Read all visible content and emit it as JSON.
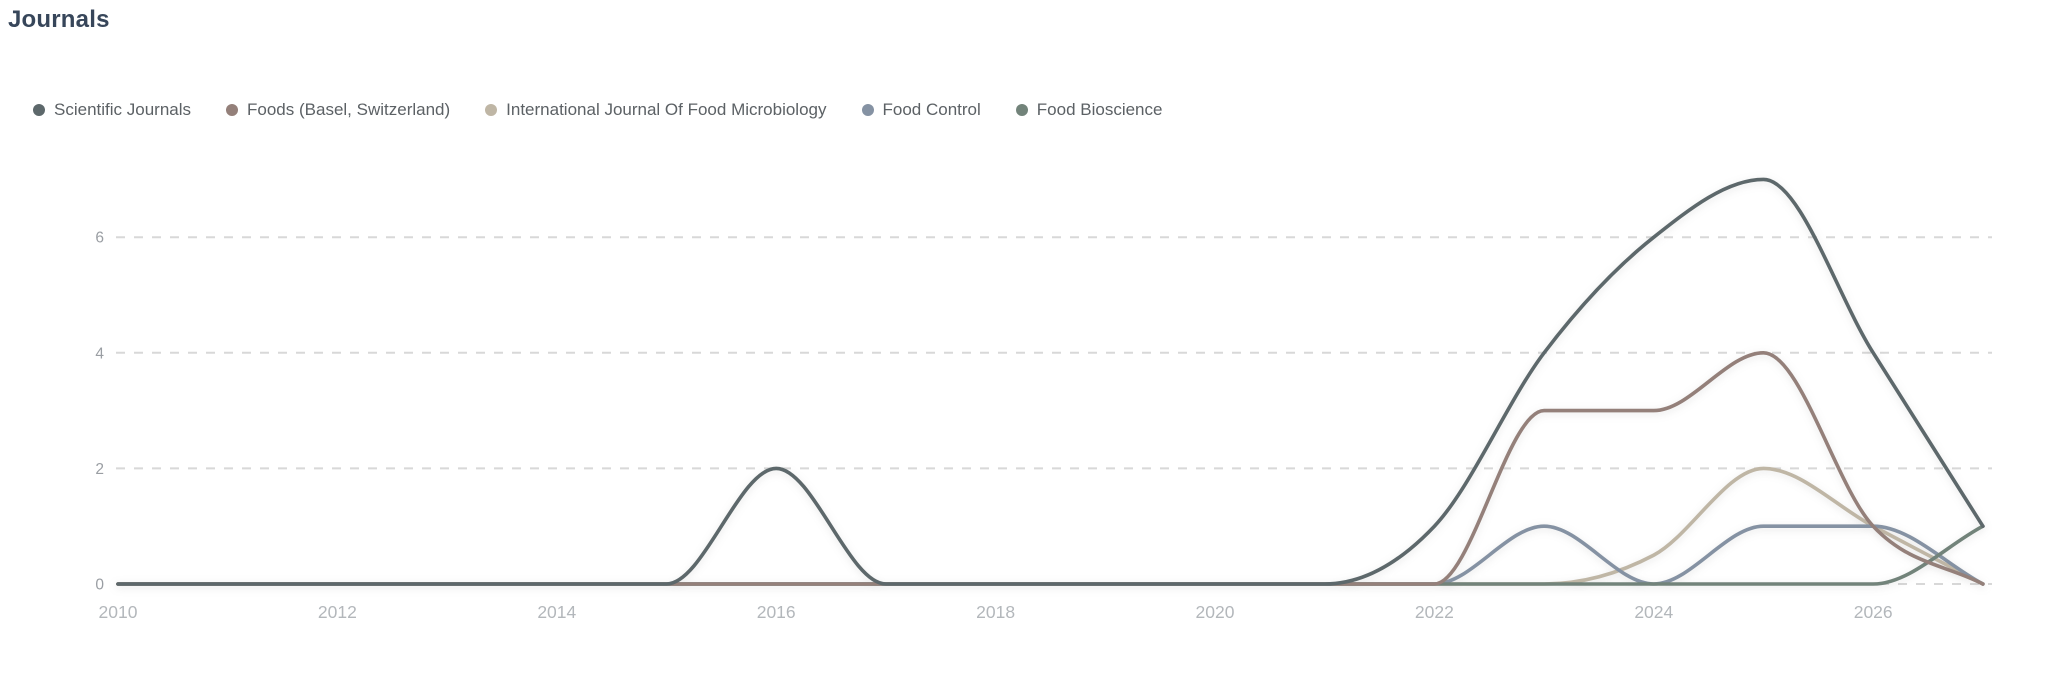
{
  "title": "Journals",
  "colors": {
    "title": "#37465a",
    "legend_text": "#5c6165",
    "y_tick_label": "#9a9ea3",
    "x_tick_label": "#b3b7bb",
    "gridline": "#d8d8d8",
    "background": "#ffffff"
  },
  "chart_data": {
    "type": "line",
    "title": "Journals",
    "xlabel": "",
    "ylabel": "",
    "x": [
      2010,
      2011,
      2012,
      2013,
      2014,
      2015,
      2016,
      2017,
      2018,
      2019,
      2020,
      2021,
      2022,
      2023,
      2024,
      2025,
      2026,
      2027
    ],
    "x_tick_labels": [
      "2010",
      "2012",
      "2014",
      "2016",
      "2018",
      "2020",
      "2022",
      "2024",
      "2026"
    ],
    "y_ticks": [
      0,
      2,
      4,
      6
    ],
    "ylim": [
      0,
      7.4
    ],
    "grid": "horizontal-dashed",
    "legend_position": "top-left",
    "line_style": "smooth-monotone",
    "series": [
      {
        "name": "Scientific Journals",
        "color": "#5d686b",
        "values": [
          0,
          0,
          0,
          0,
          0,
          0,
          2,
          0,
          0,
          0,
          0,
          0,
          1,
          4,
          6,
          7,
          4,
          1
        ]
      },
      {
        "name": "Foods (Basel, Switzerland)",
        "color": "#94807a",
        "values": [
          0,
          0,
          0,
          0,
          0,
          0,
          0,
          0,
          0,
          0,
          0,
          0,
          0,
          3,
          3,
          4,
          1,
          0
        ]
      },
      {
        "name": "International Journal Of Food Microbiology",
        "color": "#bfb6a5",
        "values": [
          0,
          0,
          0,
          0,
          0,
          0,
          0,
          0,
          0,
          0,
          0,
          0,
          0,
          0,
          0.5,
          2,
          1,
          0
        ]
      },
      {
        "name": "Food Control",
        "color": "#8592a3",
        "values": [
          0,
          0,
          0,
          0,
          0,
          0,
          0,
          0,
          0,
          0,
          0,
          0,
          0,
          1,
          0,
          1,
          1,
          0
        ]
      },
      {
        "name": "Food Bioscience",
        "color": "#72837a",
        "values": [
          0,
          0,
          0,
          0,
          0,
          0,
          0,
          0,
          0,
          0,
          0,
          0,
          0,
          0,
          0,
          0,
          0,
          1
        ]
      }
    ]
  }
}
